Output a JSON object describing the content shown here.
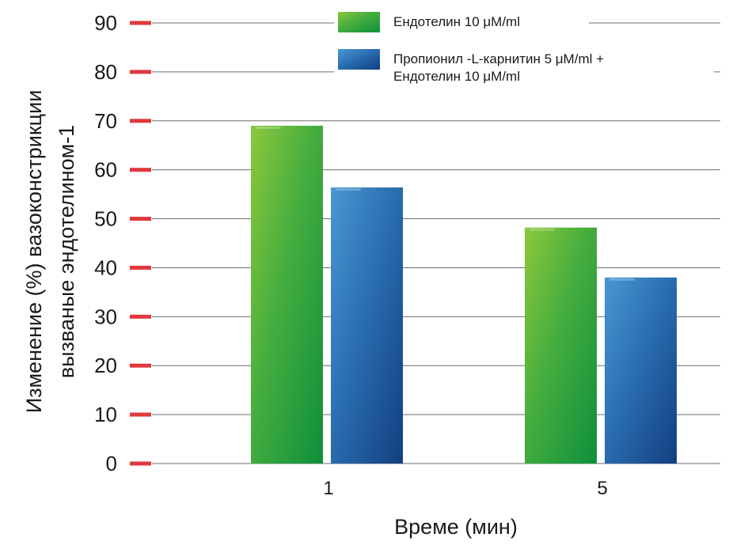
{
  "chart_data": {
    "type": "bar",
    "categories": [
      "1",
      "5"
    ],
    "series": [
      {
        "name": "Ендотелин 10 μM/ml",
        "values": [
          69,
          48.2
        ],
        "color": "#2aa53c"
      },
      {
        "name": "Пропионил -L-карнитин 5 μM/ml + Ендотелин 10  μM/ml",
        "values": [
          56.4,
          38
        ],
        "color": "#1f5fa5"
      }
    ],
    "legend_lines": [
      [
        "Ендотелин 10 μM/ml"
      ],
      [
        "Пропионил -L-карнитин 5 μM/ml +",
        "Ендотелин 10  μM/ml"
      ]
    ],
    "xlabel": "Време (мин)",
    "ylabel_lines": [
      "Изменение (%) вазоконстрикции",
      "вызваные эндотелином-1"
    ],
    "ylim": [
      0,
      90
    ],
    "yticks": [
      0,
      10,
      20,
      30,
      40,
      50,
      60,
      70,
      80,
      90
    ],
    "tick_marker_color": "#e0393e",
    "grid": true,
    "legend_position": "top-right"
  }
}
